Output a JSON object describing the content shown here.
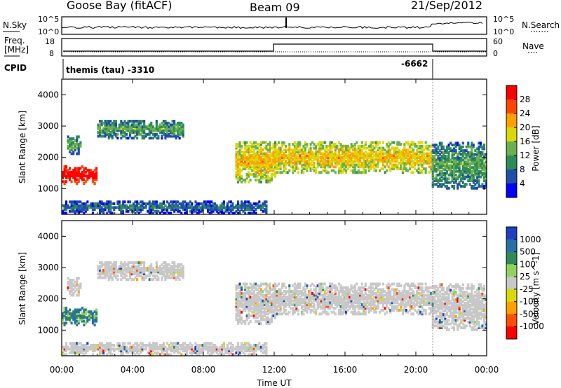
{
  "header": {
    "station": "Goose Bay (fitACF)",
    "beam": "Beam 09",
    "date": "21/Sep/2012"
  },
  "labels": {
    "nsky": "N.Sky",
    "nsearch": "N.Search",
    "nsearch_dots": ".......",
    "freq_line1": "Freq.",
    "freq_line2": "[MHz]",
    "nave": "Nave",
    "nave_dots": "....",
    "cpid": "CPID",
    "cpid_prog1": "themis (tau) -3310",
    "cpid_prog2": "-6662"
  },
  "noise_axis": {
    "left": [
      "10^5",
      "10^0"
    ],
    "right": [
      "10^5",
      "10^0"
    ]
  },
  "freq_axis": {
    "left": [
      "18",
      "8"
    ],
    "right": [
      "60",
      "0"
    ]
  },
  "chart_data": [
    {
      "type": "heatmap",
      "parameter": "power",
      "ylabel": "Slant Range [km]",
      "ylim": [
        180,
        4500
      ],
      "yticks": [
        "1000",
        "2000",
        "3000",
        "4000"
      ],
      "xlim_hours": [
        0,
        24
      ],
      "colorbar": {
        "label": "Power [dB]",
        "ticks": [
          "4",
          "8",
          "12",
          "16",
          "20",
          "24",
          "28"
        ]
      },
      "colors": [
        "#0000ff",
        "#1f4fa6",
        "#2e8b57",
        "#6ab04c",
        "#d9d90a",
        "#ff9f00",
        "#ff4500",
        "#ff0000"
      ],
      "echo_regions": [
        {
          "t": [
            0.0,
            2.0
          ],
          "range_km": [
            1150,
            1700
          ],
          "level": 6
        },
        {
          "t": [
            0.3,
            1.0
          ],
          "range_km": [
            2100,
            2700
          ],
          "level": 1
        },
        {
          "t": [
            2.0,
            6.8
          ],
          "range_km": [
            2600,
            3200
          ],
          "level": 1
        },
        {
          "t": [
            0.0,
            11.5
          ],
          "range_km": [
            200,
            600
          ],
          "level": 0
        },
        {
          "t": [
            9.8,
            12.0
          ],
          "range_km": [
            1200,
            2500
          ],
          "level": 3
        },
        {
          "t": [
            12.0,
            20.9
          ],
          "range_km": [
            1500,
            2500
          ],
          "level": 3
        },
        {
          "t": [
            20.9,
            24.0
          ],
          "range_km": [
            1000,
            2500
          ],
          "level": 1
        }
      ]
    },
    {
      "type": "heatmap",
      "parameter": "velocity",
      "ylabel": "Slant Range [km]",
      "ylim": [
        180,
        4500
      ],
      "yticks": [
        "1000",
        "2000",
        "3000",
        "4000"
      ],
      "xlim_hours": [
        0,
        24
      ],
      "colorbar": {
        "label": "Velocity [m s^-1]",
        "ticks": [
          "1000",
          "500",
          "100",
          "25",
          "-25",
          "-100",
          "-500",
          "-1000"
        ]
      },
      "colors": [
        "#1f3fbf",
        "#2a6ea6",
        "#2e8b57",
        "#8fd35a",
        "#c8c8c8",
        "#d9d90a",
        "#ff9f00",
        "#ff5000",
        "#ff0000"
      ],
      "ground_scatter_color": "#c8c8c8"
    }
  ],
  "x_axis": {
    "label": "Time UT",
    "ticks": [
      "00:00",
      "04:00",
      "08:00",
      "12:00",
      "16:00",
      "20:00",
      "00:00"
    ]
  }
}
